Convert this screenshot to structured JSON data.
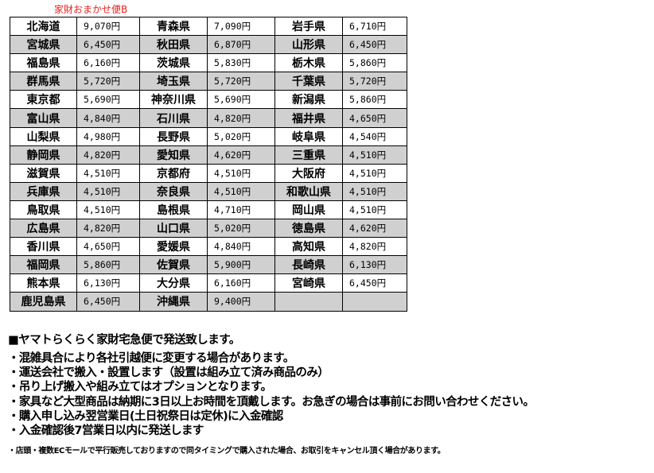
{
  "title": "家財おまかせ便B",
  "rows": [
    [
      [
        "北海道",
        "9,070円"
      ],
      [
        "青森県",
        "7,090円"
      ],
      [
        "岩手県",
        "6,710円"
      ]
    ],
    [
      [
        "宮城県",
        "6,450円"
      ],
      [
        "秋田県",
        "6,870円"
      ],
      [
        "山形県",
        "6,450円"
      ]
    ],
    [
      [
        "福島県",
        "6,160円"
      ],
      [
        "茨城県",
        "5,830円"
      ],
      [
        "栃木県",
        "5,860円"
      ]
    ],
    [
      [
        "群馬県",
        "5,720円"
      ],
      [
        "埼玉県",
        "5,720円"
      ],
      [
        "千葉県",
        "5,720円"
      ]
    ],
    [
      [
        "東京都",
        "5,690円"
      ],
      [
        "神奈川県",
        "5,690円"
      ],
      [
        "新潟県",
        "5,860円"
      ]
    ],
    [
      [
        "富山県",
        "4,840円"
      ],
      [
        "石川県",
        "4,820円"
      ],
      [
        "福井県",
        "4,650円"
      ]
    ],
    [
      [
        "山梨県",
        "4,980円"
      ],
      [
        "長野県",
        "5,020円"
      ],
      [
        "岐阜県",
        "4,540円"
      ]
    ],
    [
      [
        "静岡県",
        "4,820円"
      ],
      [
        "愛知県",
        "4,620円"
      ],
      [
        "三重県",
        "4,510円"
      ]
    ],
    [
      [
        "滋賀県",
        "4,510円"
      ],
      [
        "京都府",
        "4,510円"
      ],
      [
        "大阪府",
        "4,510円"
      ]
    ],
    [
      [
        "兵庫県",
        "4,510円"
      ],
      [
        "奈良県",
        "4,510円"
      ],
      [
        "和歌山県",
        "4,510円"
      ]
    ],
    [
      [
        "鳥取県",
        "4,510円"
      ],
      [
        "島根県",
        "4,710円"
      ],
      [
        "岡山県",
        "4,510円"
      ]
    ],
    [
      [
        "広島県",
        "4,820円"
      ],
      [
        "山口県",
        "5,020円"
      ],
      [
        "徳島県",
        "4,620円"
      ]
    ],
    [
      [
        "香川県",
        "4,650円"
      ],
      [
        "愛媛県",
        "4,840円"
      ],
      [
        "高知県",
        "4,820円"
      ]
    ],
    [
      [
        "福岡県",
        "5,860円"
      ],
      [
        "佐賀県",
        "5,900円"
      ],
      [
        "長崎県",
        "6,130円"
      ]
    ],
    [
      [
        "熊本県",
        "6,130円"
      ],
      [
        "大分県",
        "6,160円"
      ],
      [
        "宮崎県",
        "6,450円"
      ]
    ],
    [
      [
        "鹿児島県",
        "6,450円"
      ],
      [
        "沖縄県",
        "9,400円"
      ],
      [
        "",
        ""
      ]
    ]
  ],
  "heading": "■ヤマトらくらく家財宅急便で発送致します。",
  "bullets": [
    "・混雑具合により各社引越便に変更する場合があります。",
    "・運送会社で搬入・設置します（設置は組み立て済み商品のみ）",
    "・吊り上げ搬入や組み立てはオプションとなります。",
    "・家具など大型商品は納期に3日以上お時間を頂戴します。お急ぎの場合は事前にお問い合わせください。",
    "・購入申し込み翌営業日(土日祝祭日は定休)に入金確認",
    "・入金確認後7営業日以内に発送します"
  ],
  "note": "・店頭・複数ECモールで平行販売しておりますので同タイミングで購入された場合、お取引をキャンセル頂く場合があります。",
  "colors": {
    "title": "#e8231e",
    "row_alt": "#d0d0d0"
  }
}
